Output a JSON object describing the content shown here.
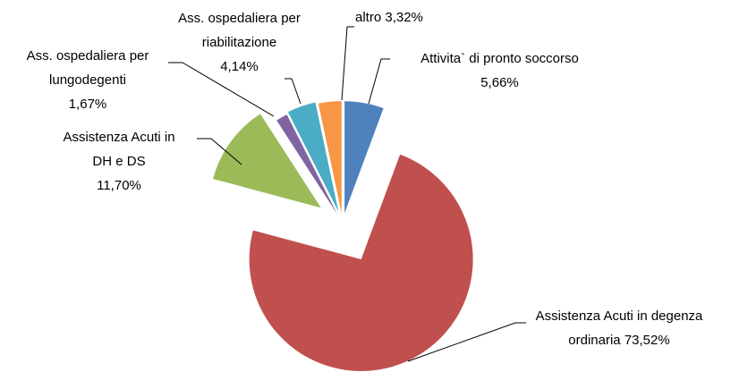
{
  "chart_data": {
    "type": "pie",
    "categories": [
      "Attivita` di pronto soccorso",
      "Assistenza Acuti in degenza ordinaria",
      "Assistenza Acuti in DH e DS",
      "Ass. ospedaliera per lungodegenti",
      "Ass. ospedaliera per riabilitazione",
      "altro"
    ],
    "values": [
      5.66,
      73.52,
      11.7,
      1.67,
      4.14,
      3.32
    ],
    "value_labels": [
      "5,66%",
      "73,52%",
      "11,70%",
      "1,67%",
      "4,14%",
      "3,32%"
    ],
    "colors": [
      "#4f81bd",
      "#c0504d",
      "#9bbb59",
      "#8064a2",
      "#4bacc6",
      "#f79646"
    ]
  }
}
